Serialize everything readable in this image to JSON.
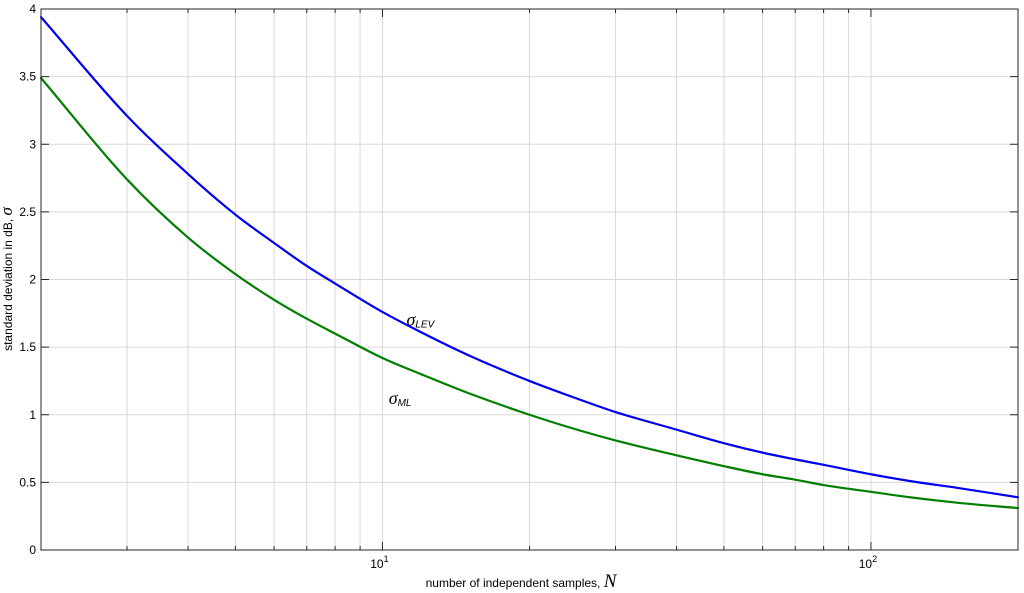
{
  "chart_data": {
    "type": "line",
    "xscale": "log",
    "xlim": [
      2,
      200
    ],
    "ylim": [
      0,
      4
    ],
    "grid": true,
    "xlabel": "number of independent samples,",
    "xlabel_symbol": "N",
    "ylabel": "standard deviation in dB,",
    "ylabel_symbol": "σ",
    "x_ticks": [
      {
        "value": 10,
        "base": "10",
        "exp": "1"
      },
      {
        "value": 100,
        "base": "10",
        "exp": "2"
      }
    ],
    "y_ticks": [
      {
        "value": 0,
        "label": "0"
      },
      {
        "value": 0.5,
        "label": "0.5"
      },
      {
        "value": 1,
        "label": "1"
      },
      {
        "value": 1.5,
        "label": "1.5"
      },
      {
        "value": 2,
        "label": "2"
      },
      {
        "value": 2.5,
        "label": "2.5"
      },
      {
        "value": 3,
        "label": "3"
      },
      {
        "value": 3.5,
        "label": "3.5"
      },
      {
        "value": 4,
        "label": "4"
      }
    ],
    "series": [
      {
        "name": "σLEV",
        "symbol": "σ",
        "subscript": "LEV",
        "color": "#0000ee",
        "label_at": {
          "x": 11.2,
          "y": 1.66
        },
        "points": [
          [
            2,
            3.94
          ],
          [
            3,
            3.21
          ],
          [
            4,
            2.78
          ],
          [
            5,
            2.48
          ],
          [
            6,
            2.27
          ],
          [
            7,
            2.1
          ],
          [
            8,
            1.97
          ],
          [
            10,
            1.76
          ],
          [
            12,
            1.61
          ],
          [
            15,
            1.44
          ],
          [
            20,
            1.25
          ],
          [
            25,
            1.12
          ],
          [
            30,
            1.02
          ],
          [
            40,
            0.89
          ],
          [
            50,
            0.79
          ],
          [
            60,
            0.72
          ],
          [
            70,
            0.67
          ],
          [
            80,
            0.63
          ],
          [
            100,
            0.56
          ],
          [
            120,
            0.51
          ],
          [
            150,
            0.46
          ],
          [
            200,
            0.39
          ]
        ]
      },
      {
        "name": "σML",
        "symbol": "σ",
        "subscript": "ML",
        "color": "#007f00",
        "label_at": {
          "x": 10.3,
          "y": 1.08
        },
        "points": [
          [
            2,
            3.49
          ],
          [
            3,
            2.74
          ],
          [
            4,
            2.31
          ],
          [
            5,
            2.04
          ],
          [
            6,
            1.85
          ],
          [
            7,
            1.71
          ],
          [
            8,
            1.6
          ],
          [
            10,
            1.42
          ],
          [
            12,
            1.3
          ],
          [
            15,
            1.16
          ],
          [
            20,
            1.0
          ],
          [
            25,
            0.89
          ],
          [
            30,
            0.81
          ],
          [
            40,
            0.7
          ],
          [
            50,
            0.62
          ],
          [
            60,
            0.56
          ],
          [
            70,
            0.52
          ],
          [
            80,
            0.48
          ],
          [
            100,
            0.43
          ],
          [
            120,
            0.39
          ],
          [
            150,
            0.35
          ],
          [
            200,
            0.31
          ]
        ]
      }
    ]
  }
}
